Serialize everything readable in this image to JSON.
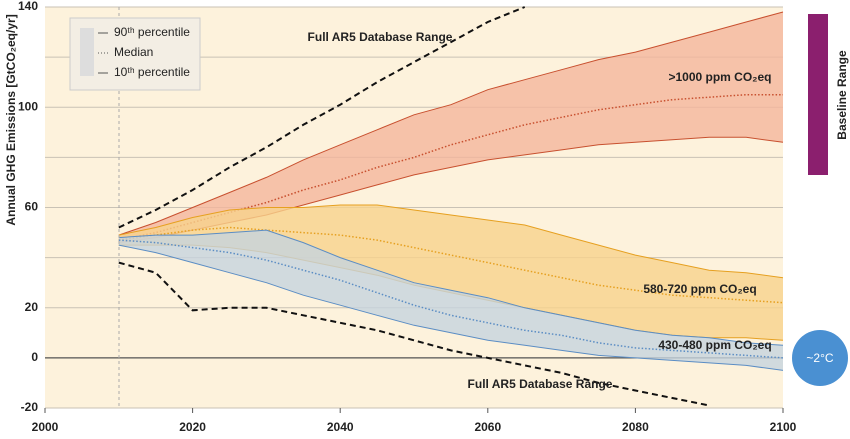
{
  "chart_data": {
    "type": "band",
    "y_label": "Annual GHG Emissions [GtCO₂eq/yr]",
    "xlim": [
      2000,
      2100
    ],
    "xticks": [
      2000,
      2020,
      2040,
      2060,
      2080,
      2100
    ],
    "ylim": [
      -20,
      140
    ],
    "yticks": [
      -20,
      0,
      20,
      60,
      100,
      140
    ],
    "minor_yticks": [
      40,
      80,
      120
    ],
    "grid": true,
    "legend": [
      "90ᵗʰ percentile",
      "Median",
      "10ᵗʰ percentile"
    ],
    "x": [
      2010,
      2015,
      2020,
      2025,
      2030,
      2035,
      2040,
      2045,
      2050,
      2055,
      2060,
      2065,
      2070,
      2075,
      2080,
      2085,
      2090,
      2095,
      2100
    ],
    "series": [
      {
        "name": ">1000 ppm CO₂eq",
        "color": "#c8502f",
        "fill": "#f4b59c",
        "upper": [
          49,
          54,
          60,
          66,
          72,
          79,
          85,
          91,
          97,
          101,
          107,
          111,
          115,
          119,
          122,
          126,
          130,
          134,
          138
        ],
        "median": [
          47,
          50,
          54,
          58,
          62,
          67,
          71,
          76,
          80,
          85,
          89,
          93,
          96,
          99,
          101,
          103,
          104,
          105,
          105
        ],
        "lower": [
          46,
          48,
          51,
          54,
          57,
          61,
          65,
          69,
          73,
          76,
          79,
          81,
          83,
          85,
          86,
          87,
          88,
          88,
          86
        ]
      },
      {
        "name": "580-720 ppm CO₂eq",
        "color": "#e6a020",
        "fill": "#f7d28c",
        "upper": [
          49,
          52,
          56,
          59,
          60,
          60,
          61,
          61,
          59,
          57,
          55,
          53,
          49,
          45,
          41,
          38,
          35,
          34,
          32
        ],
        "median": [
          47,
          49,
          51,
          52,
          51,
          50,
          49,
          47,
          44,
          41,
          38,
          35,
          32,
          29,
          27,
          25,
          24,
          23,
          22
        ],
        "lower": [
          45,
          45,
          45,
          44,
          42,
          39,
          36,
          33,
          29,
          26,
          23,
          20,
          17,
          14,
          11,
          9,
          8,
          8,
          7
        ]
      },
      {
        "name": "430-480 ppm CO₂eq",
        "color": "#5b8dc4",
        "fill": "#c5d3de",
        "upper": [
          48,
          49,
          49,
          50,
          51,
          46,
          40,
          35,
          30,
          27,
          24,
          20,
          17,
          14,
          11,
          9,
          8,
          6,
          5
        ],
        "median": [
          47,
          46,
          44,
          42,
          39,
          35,
          31,
          26,
          21,
          17,
          14,
          11,
          9,
          6,
          4,
          3,
          2,
          1,
          0
        ],
        "lower": [
          45,
          42,
          38,
          34,
          30,
          25,
          21,
          17,
          13,
          10,
          7,
          5,
          3,
          1,
          0,
          -1,
          -2,
          -3,
          -5
        ]
      }
    ],
    "range_lines": [
      {
        "name": "Full AR5 Database Range",
        "x": [
          2010,
          2015,
          2020,
          2025,
          2030,
          2035,
          2040,
          2045,
          2050,
          2055,
          2060,
          2065
        ],
        "values": [
          52,
          59,
          67,
          76,
          84,
          93,
          101,
          110,
          118,
          126,
          134,
          140
        ]
      },
      {
        "name": "Full AR5 Database Range",
        "x": [
          2010,
          2015,
          2020,
          2025,
          2030,
          2035,
          2040,
          2045,
          2050,
          2055,
          2060,
          2065,
          2070,
          2075,
          2080,
          2085,
          2090
        ],
        "values": [
          38,
          34,
          19,
          20,
          20,
          17,
          14,
          11,
          7,
          3,
          0,
          -3,
          -6,
          -10,
          -13,
          -16,
          -19
        ]
      }
    ],
    "baseline_label": "Baseline Range",
    "target_label": "~2°C"
  }
}
